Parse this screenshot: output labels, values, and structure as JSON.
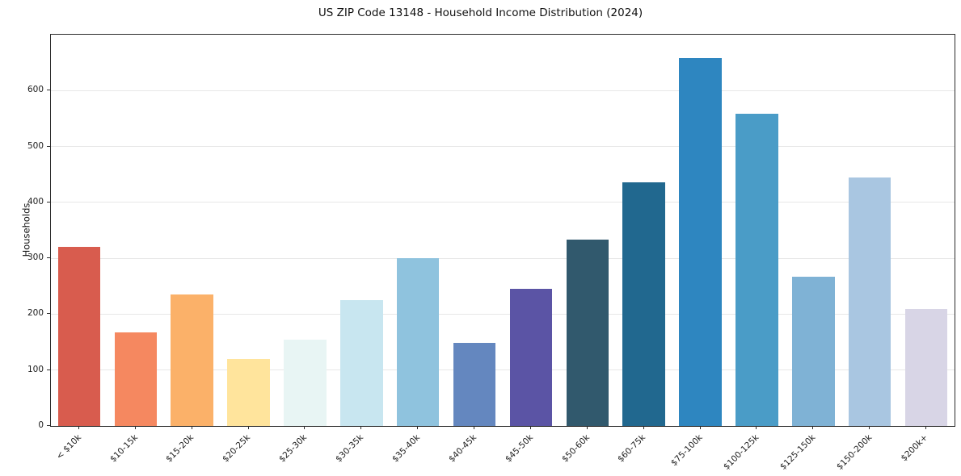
{
  "chart_data": {
    "type": "bar",
    "title": "US ZIP Code 13148 - Household Income Distribution (2024)",
    "xlabel": "",
    "ylabel": "Households",
    "categories": [
      "< $10k",
      "$10-15k",
      "$15-20k",
      "$20-25k",
      "$25-30k",
      "$30-35k",
      "$35-40k",
      "$40-45k",
      "$45-50k",
      "$50-60k",
      "$60-75k",
      "$75-100k",
      "$100-125k",
      "$125-150k",
      "$150-200k",
      "$200k+"
    ],
    "values": [
      320,
      167,
      235,
      120,
      155,
      225,
      300,
      148,
      245,
      334,
      436,
      658,
      558,
      267,
      445,
      210
    ],
    "bar_colors": [
      "#d85c4e",
      "#f58860",
      "#fbb169",
      "#ffe49c",
      "#e8f5f4",
      "#c8e6f0",
      "#8fc3de",
      "#6487bf",
      "#5b54a5",
      "#31596d",
      "#21688f",
      "#2e86c0",
      "#4a9cc7",
      "#7fb2d5",
      "#a9c6e1",
      "#d8d5e6"
    ],
    "ylim": [
      0,
      700
    ],
    "yticks": [
      0,
      100,
      200,
      300,
      400,
      500,
      600
    ],
    "grid": "horizontal",
    "legend_position": "none",
    "axis_color": "#2b2b2b",
    "grid_color": "#e7e7e7"
  }
}
